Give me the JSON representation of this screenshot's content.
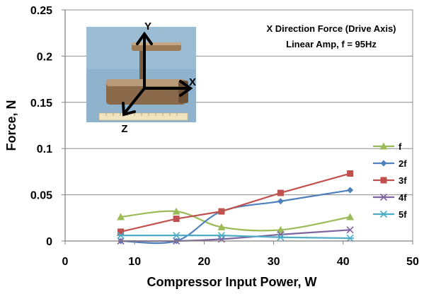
{
  "chart_data": {
    "type": "line",
    "annotation_lines": [
      "X Direction Force (Drive Axis)",
      "Linear Amp, f = 95Hz"
    ],
    "xlabel": "Compressor Input Power,  W",
    "ylabel": "Force,  N",
    "xlim": [
      0,
      50
    ],
    "ylim": [
      0,
      0.25
    ],
    "xticks": [
      "0",
      "10",
      "20",
      "30",
      "40",
      "50"
    ],
    "yticks": [
      "0",
      "0.05",
      "0.1",
      "0.15",
      "0.2",
      "0.25"
    ],
    "grid": "horizontal",
    "legend_position": "right",
    "inset_photo_axis_labels": [
      "Y",
      "X",
      "Z"
    ],
    "series": [
      {
        "name": "f",
        "color": "#9bbb59",
        "marker": "triangle",
        "smooth": true,
        "x": [
          8,
          16,
          22.5,
          31,
          41
        ],
        "y": [
          0.026,
          0.032,
          0.015,
          0.012,
          0.026
        ]
      },
      {
        "name": "2f",
        "color": "#4f81bd",
        "marker": "diamond",
        "smooth": true,
        "x": [
          8,
          16,
          22.5,
          31,
          41
        ],
        "y": [
          0.0,
          0.0,
          0.032,
          0.043,
          0.055
        ]
      },
      {
        "name": "3f",
        "color": "#c0504d",
        "marker": "square",
        "smooth": false,
        "x": [
          8,
          16,
          22.5,
          31,
          41
        ],
        "y": [
          0.01,
          0.024,
          0.032,
          0.052,
          0.073
        ]
      },
      {
        "name": "4f",
        "color": "#8064a2",
        "marker": "x",
        "smooth": true,
        "x": [
          8,
          16,
          22.5,
          31,
          41
        ],
        "y": [
          0.0,
          0.0,
          0.002,
          0.007,
          0.012
        ]
      },
      {
        "name": "5f",
        "color": "#4bacc6",
        "marker": "asterisk",
        "smooth": false,
        "x": [
          8,
          16,
          22.5,
          31,
          41
        ],
        "y": [
          0.006,
          0.006,
          0.006,
          0.004,
          0.003
        ]
      }
    ]
  }
}
